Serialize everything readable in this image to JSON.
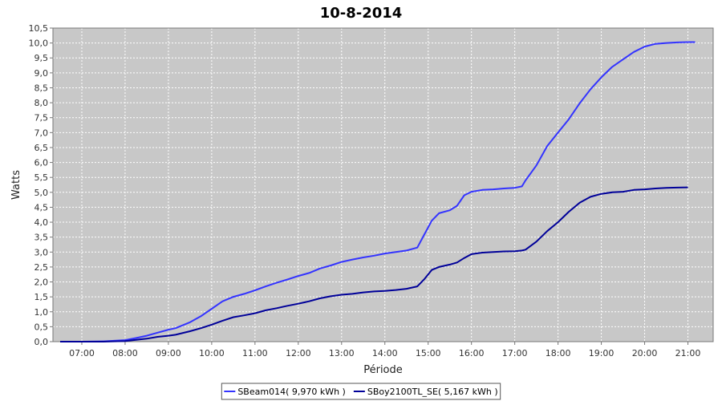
{
  "chart_data": {
    "type": "line",
    "title": "10-8-2014",
    "xlabel": "Période",
    "ylabel": "Watts",
    "x_ticks": [
      "07:00",
      "08:00",
      "09:00",
      "10:00",
      "11:00",
      "12:00",
      "13:00",
      "14:00",
      "15:00",
      "16:00",
      "17:00",
      "18:00",
      "19:00",
      "20:00",
      "21:00"
    ],
    "y_ticks": [
      "0,0",
      "0,5",
      "1,0",
      "1,5",
      "2,0",
      "2,5",
      "3,0",
      "3,5",
      "4,0",
      "4,5",
      "5,0",
      "5,5",
      "6,0",
      "6,5",
      "7,0",
      "7,5",
      "8,0",
      "8,5",
      "9,0",
      "9,5",
      "10,0",
      "10,5"
    ],
    "xlim": [
      "06:20",
      "21:35"
    ],
    "ylim": [
      0,
      10.5
    ],
    "grid": true,
    "legend_position": "bottom",
    "colors": {
      "plot_background": "#c8c8c8",
      "grid": "#ffffff"
    },
    "series": [
      {
        "name": "SBeam014( 9,970 kWh )",
        "color": "#3333ff",
        "points": [
          [
            "06:30",
            0.0
          ],
          [
            "07:00",
            0.0
          ],
          [
            "07:30",
            0.01
          ],
          [
            "08:00",
            0.05
          ],
          [
            "08:15",
            0.12
          ],
          [
            "08:30",
            0.2
          ],
          [
            "08:45",
            0.3
          ],
          [
            "09:00",
            0.4
          ],
          [
            "09:10",
            0.45
          ],
          [
            "09:30",
            0.65
          ],
          [
            "09:45",
            0.85
          ],
          [
            "10:00",
            1.1
          ],
          [
            "10:15",
            1.35
          ],
          [
            "10:30",
            1.5
          ],
          [
            "10:45",
            1.6
          ],
          [
            "11:00",
            1.72
          ],
          [
            "11:15",
            1.85
          ],
          [
            "11:30",
            1.97
          ],
          [
            "11:45",
            2.08
          ],
          [
            "12:00",
            2.2
          ],
          [
            "12:15",
            2.3
          ],
          [
            "12:30",
            2.45
          ],
          [
            "12:45",
            2.55
          ],
          [
            "13:00",
            2.67
          ],
          [
            "13:15",
            2.75
          ],
          [
            "13:30",
            2.82
          ],
          [
            "13:45",
            2.88
          ],
          [
            "14:00",
            2.95
          ],
          [
            "14:15",
            3.0
          ],
          [
            "14:30",
            3.05
          ],
          [
            "14:45",
            3.15
          ],
          [
            "14:55",
            3.6
          ],
          [
            "15:05",
            4.05
          ],
          [
            "15:15",
            4.3
          ],
          [
            "15:30",
            4.4
          ],
          [
            "15:40",
            4.55
          ],
          [
            "15:50",
            4.9
          ],
          [
            "16:00",
            5.02
          ],
          [
            "16:15",
            5.08
          ],
          [
            "16:30",
            5.1
          ],
          [
            "16:45",
            5.13
          ],
          [
            "17:00",
            5.15
          ],
          [
            "17:10",
            5.2
          ],
          [
            "17:15",
            5.4
          ],
          [
            "17:30",
            5.9
          ],
          [
            "17:45",
            6.55
          ],
          [
            "18:00",
            7.0
          ],
          [
            "18:15",
            7.45
          ],
          [
            "18:30",
            7.98
          ],
          [
            "18:45",
            8.45
          ],
          [
            "19:00",
            8.85
          ],
          [
            "19:15",
            9.2
          ],
          [
            "19:30",
            9.45
          ],
          [
            "19:45",
            9.7
          ],
          [
            "20:00",
            9.88
          ],
          [
            "20:15",
            9.97
          ],
          [
            "20:30",
            10.0
          ],
          [
            "20:45",
            10.02
          ],
          [
            "21:00",
            10.03
          ],
          [
            "21:10",
            10.03
          ]
        ]
      },
      {
        "name": "SBoy2100TL_SE( 5,167 kWh )",
        "color": "#000099",
        "points": [
          [
            "06:30",
            0.0
          ],
          [
            "07:00",
            0.0
          ],
          [
            "07:30",
            0.0
          ],
          [
            "08:00",
            0.02
          ],
          [
            "08:15",
            0.06
          ],
          [
            "08:30",
            0.1
          ],
          [
            "08:45",
            0.16
          ],
          [
            "09:00",
            0.2
          ],
          [
            "09:10",
            0.23
          ],
          [
            "09:30",
            0.35
          ],
          [
            "09:45",
            0.45
          ],
          [
            "10:00",
            0.57
          ],
          [
            "10:15",
            0.7
          ],
          [
            "10:30",
            0.82
          ],
          [
            "10:45",
            0.88
          ],
          [
            "11:00",
            0.95
          ],
          [
            "11:15",
            1.05
          ],
          [
            "11:30",
            1.12
          ],
          [
            "11:45",
            1.2
          ],
          [
            "12:00",
            1.27
          ],
          [
            "12:15",
            1.35
          ],
          [
            "12:30",
            1.45
          ],
          [
            "12:45",
            1.52
          ],
          [
            "13:00",
            1.57
          ],
          [
            "13:15",
            1.6
          ],
          [
            "13:30",
            1.65
          ],
          [
            "13:45",
            1.68
          ],
          [
            "14:00",
            1.7
          ],
          [
            "14:15",
            1.73
          ],
          [
            "14:30",
            1.77
          ],
          [
            "14:45",
            1.85
          ],
          [
            "14:55",
            2.1
          ],
          [
            "15:05",
            2.4
          ],
          [
            "15:15",
            2.5
          ],
          [
            "15:30",
            2.58
          ],
          [
            "15:40",
            2.65
          ],
          [
            "15:50",
            2.8
          ],
          [
            "16:00",
            2.93
          ],
          [
            "16:15",
            2.98
          ],
          [
            "16:30",
            3.0
          ],
          [
            "16:45",
            3.02
          ],
          [
            "17:00",
            3.03
          ],
          [
            "17:10",
            3.05
          ],
          [
            "17:15",
            3.08
          ],
          [
            "17:30",
            3.35
          ],
          [
            "17:45",
            3.7
          ],
          [
            "18:00",
            4.0
          ],
          [
            "18:15",
            4.35
          ],
          [
            "18:30",
            4.65
          ],
          [
            "18:45",
            4.85
          ],
          [
            "19:00",
            4.95
          ],
          [
            "19:15",
            5.0
          ],
          [
            "19:30",
            5.02
          ],
          [
            "19:45",
            5.08
          ],
          [
            "20:00",
            5.1
          ],
          [
            "20:15",
            5.13
          ],
          [
            "20:30",
            5.15
          ],
          [
            "20:45",
            5.16
          ],
          [
            "21:00",
            5.167
          ]
        ]
      }
    ]
  }
}
